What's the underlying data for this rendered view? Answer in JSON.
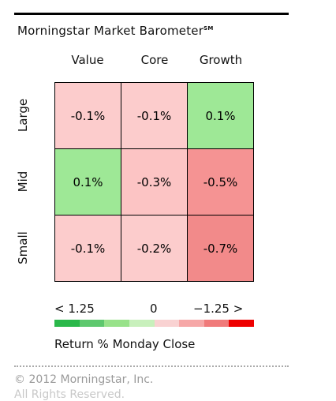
{
  "widget": {
    "title": "Morningstar Market Barometer",
    "title_mark": "SM",
    "scale": {
      "left": "< 1.25",
      "mid": "0",
      "right": "−1.25 >"
    },
    "caption": "Return %   Monday Close",
    "copyright": "© 2012 Morningstar, Inc.",
    "rights": "All Rights Reserved."
  },
  "chart_data": {
    "type": "heatmap",
    "title": "Morningstar Market Barometer",
    "columns": [
      "Value",
      "Core",
      "Growth"
    ],
    "rows": [
      "Large",
      "Mid",
      "Small"
    ],
    "values": [
      [
        -0.1,
        -0.1,
        0.1
      ],
      [
        0.1,
        -0.3,
        -0.5
      ],
      [
        -0.1,
        -0.2,
        -0.7
      ]
    ],
    "labels": [
      [
        "-0.1%",
        "-0.1%",
        "0.1%"
      ],
      [
        "0.1%",
        "-0.3%",
        "-0.5%"
      ],
      [
        "-0.1%",
        "-0.2%",
        "-0.7%"
      ]
    ],
    "scale_colors": [
      "#2ab84a",
      "#5ec86e",
      "#98e28a",
      "#c8f0bc",
      "#f9d2d2",
      "#f6a7a7",
      "#f07a7a",
      "#ee0000"
    ],
    "cell_colors": [
      [
        "#fccccc",
        "#fccccc",
        "#9ee896"
      ],
      [
        "#9ee896",
        "#fcc4c4",
        "#f59393"
      ],
      [
        "#fccccc",
        "#fccccc",
        "#f28a8a"
      ]
    ]
  }
}
